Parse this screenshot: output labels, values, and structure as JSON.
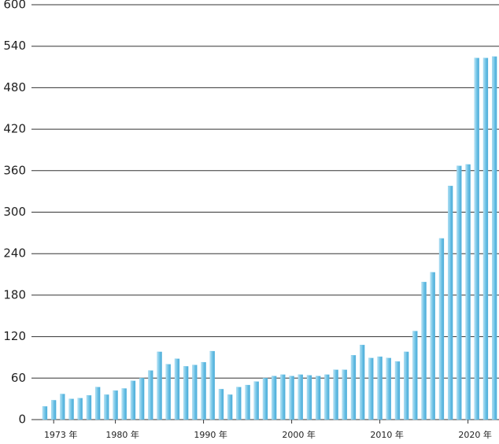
{
  "chart_data": {
    "type": "bar",
    "categories": [
      null,
      "1973 年",
      null,
      null,
      null,
      null,
      null,
      null,
      "1980 年",
      null,
      null,
      null,
      null,
      null,
      null,
      null,
      null,
      null,
      "1990 年",
      null,
      null,
      null,
      null,
      null,
      null,
      null,
      null,
      null,
      "2000 年",
      null,
      null,
      null,
      null,
      null,
      null,
      null,
      null,
      null,
      "2010 年",
      null,
      null,
      null,
      null,
      null,
      null,
      null,
      null,
      null,
      "2020 年",
      null,
      null,
      null
    ],
    "values": [
      19,
      28,
      37,
      30,
      31,
      35,
      47,
      36,
      42,
      45,
      56,
      60,
      71,
      98,
      80,
      88,
      77,
      79,
      83,
      99,
      44,
      36,
      47,
      50,
      55,
      60,
      63,
      65,
      63,
      65,
      64,
      63,
      65,
      72,
      72,
      93,
      108,
      89,
      91,
      89,
      84,
      98,
      128,
      199,
      213,
      262,
      338,
      367,
      369,
      523,
      523,
      525
    ],
    "color": "#6ec3e6",
    "ylim": [
      0,
      600
    ],
    "yticks": [
      0,
      60,
      120,
      180,
      240,
      300,
      360,
      420,
      480,
      540,
      600
    ],
    "grid": true
  }
}
